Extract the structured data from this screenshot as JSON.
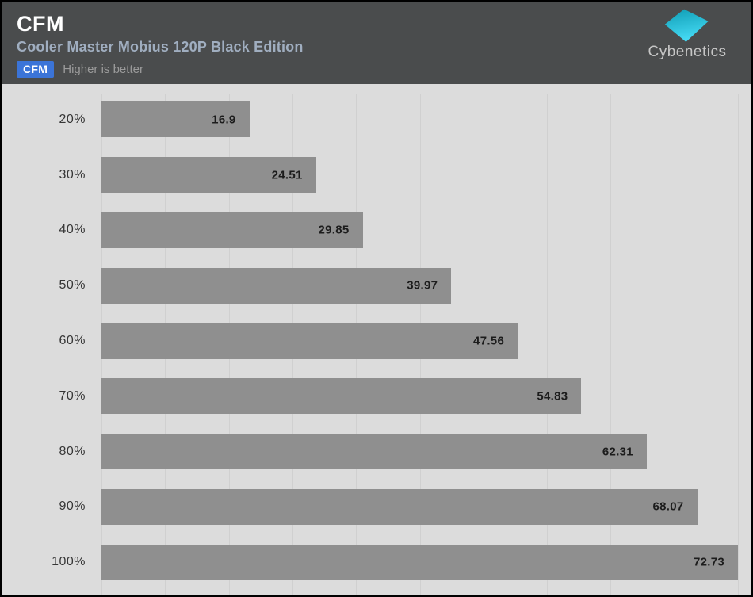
{
  "header": {
    "title": "CFM",
    "subtitle": "Cooler Master Mobius 120P Black Edition",
    "badge_label": "CFM",
    "badge_note": "Higher is better",
    "logo_text": "Cybenetics"
  },
  "colors": {
    "accent_blue": "#3b74d8",
    "bar_gray": "#8f8f8f",
    "header_bg": "#4a4c4d",
    "chart_bg": "#dcdcdc",
    "gridline": "#d0d0d0",
    "logo_teal_dark": "#0e9cb4",
    "logo_teal_light": "#45daf4"
  },
  "chart_data": {
    "type": "bar",
    "orientation": "horizontal",
    "title": "CFM",
    "subtitle": "Cooler Master Mobius 120P Black Edition",
    "note": "Higher is better",
    "categories": [
      "20%",
      "30%",
      "40%",
      "50%",
      "60%",
      "70%",
      "80%",
      "90%",
      "100%"
    ],
    "values": [
      16.9,
      24.51,
      29.85,
      39.97,
      47.56,
      54.83,
      62.31,
      68.07,
      72.73
    ],
    "value_labels": [
      "16.9",
      "24.51",
      "29.85",
      "39.97",
      "47.56",
      "54.83",
      "62.31",
      "68.07",
      "72.73"
    ],
    "xlabel": "",
    "ylabel": "",
    "xlim": [
      0,
      72.73
    ],
    "grid_divisions": 10,
    "grid": "vertical",
    "legend_position": "none"
  }
}
